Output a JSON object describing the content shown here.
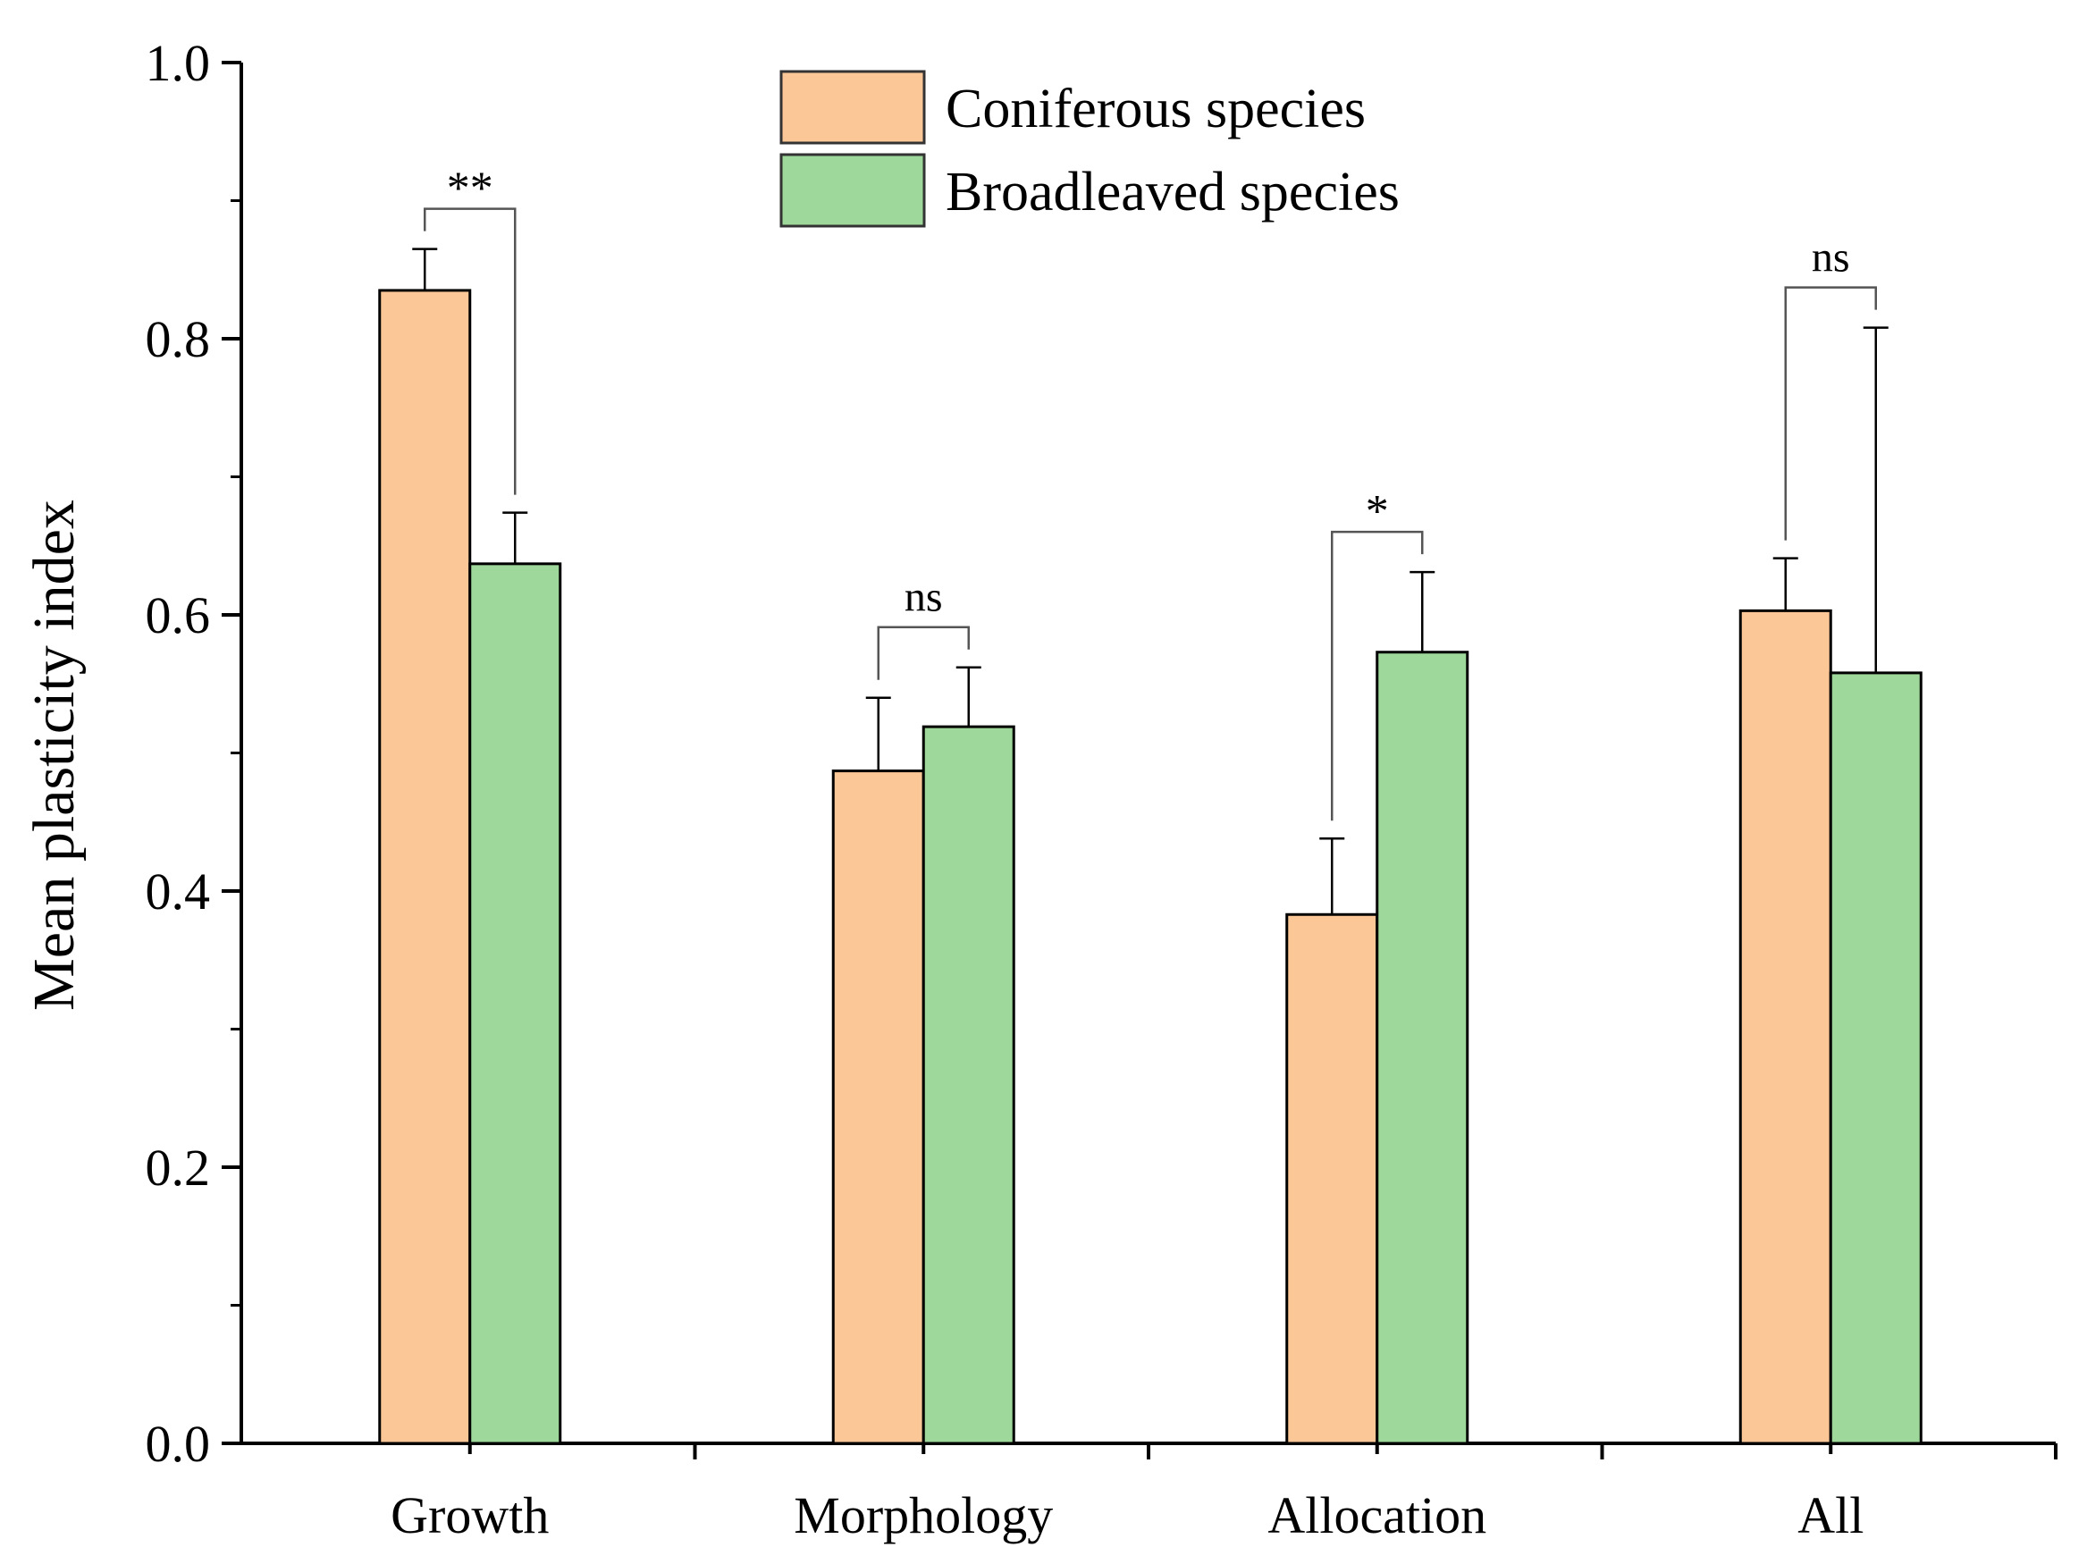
{
  "chart_data": {
    "type": "bar",
    "title": "",
    "xlabel": "",
    "ylabel": "Mean plasticity index",
    "ylim": [
      0,
      1.0
    ],
    "yticks": [
      "0.0",
      "0.2",
      "0.4",
      "0.6",
      "0.8",
      "1.0"
    ],
    "grid": false,
    "legend_position": "top-center",
    "categories": [
      "Growth",
      "Morphology",
      "Allocation",
      "All"
    ],
    "series": [
      {
        "name": "Coniferous species",
        "color": "#FBC797",
        "values": [
          0.835,
          0.487,
          0.383,
          0.603
        ],
        "errors": [
          0.03,
          0.053,
          0.055,
          0.038
        ]
      },
      {
        "name": "Broadleaved species",
        "color": "#9ED89A",
        "values": [
          0.637,
          0.519,
          0.573,
          0.558
        ],
        "errors": [
          0.037,
          0.043,
          0.058,
          0.25
        ]
      }
    ],
    "annotations": [
      {
        "category": "Growth",
        "label": "**"
      },
      {
        "category": "Morphology",
        "label": "ns"
      },
      {
        "category": "Allocation",
        "label": "*"
      },
      {
        "category": "All",
        "label": "ns"
      }
    ]
  }
}
